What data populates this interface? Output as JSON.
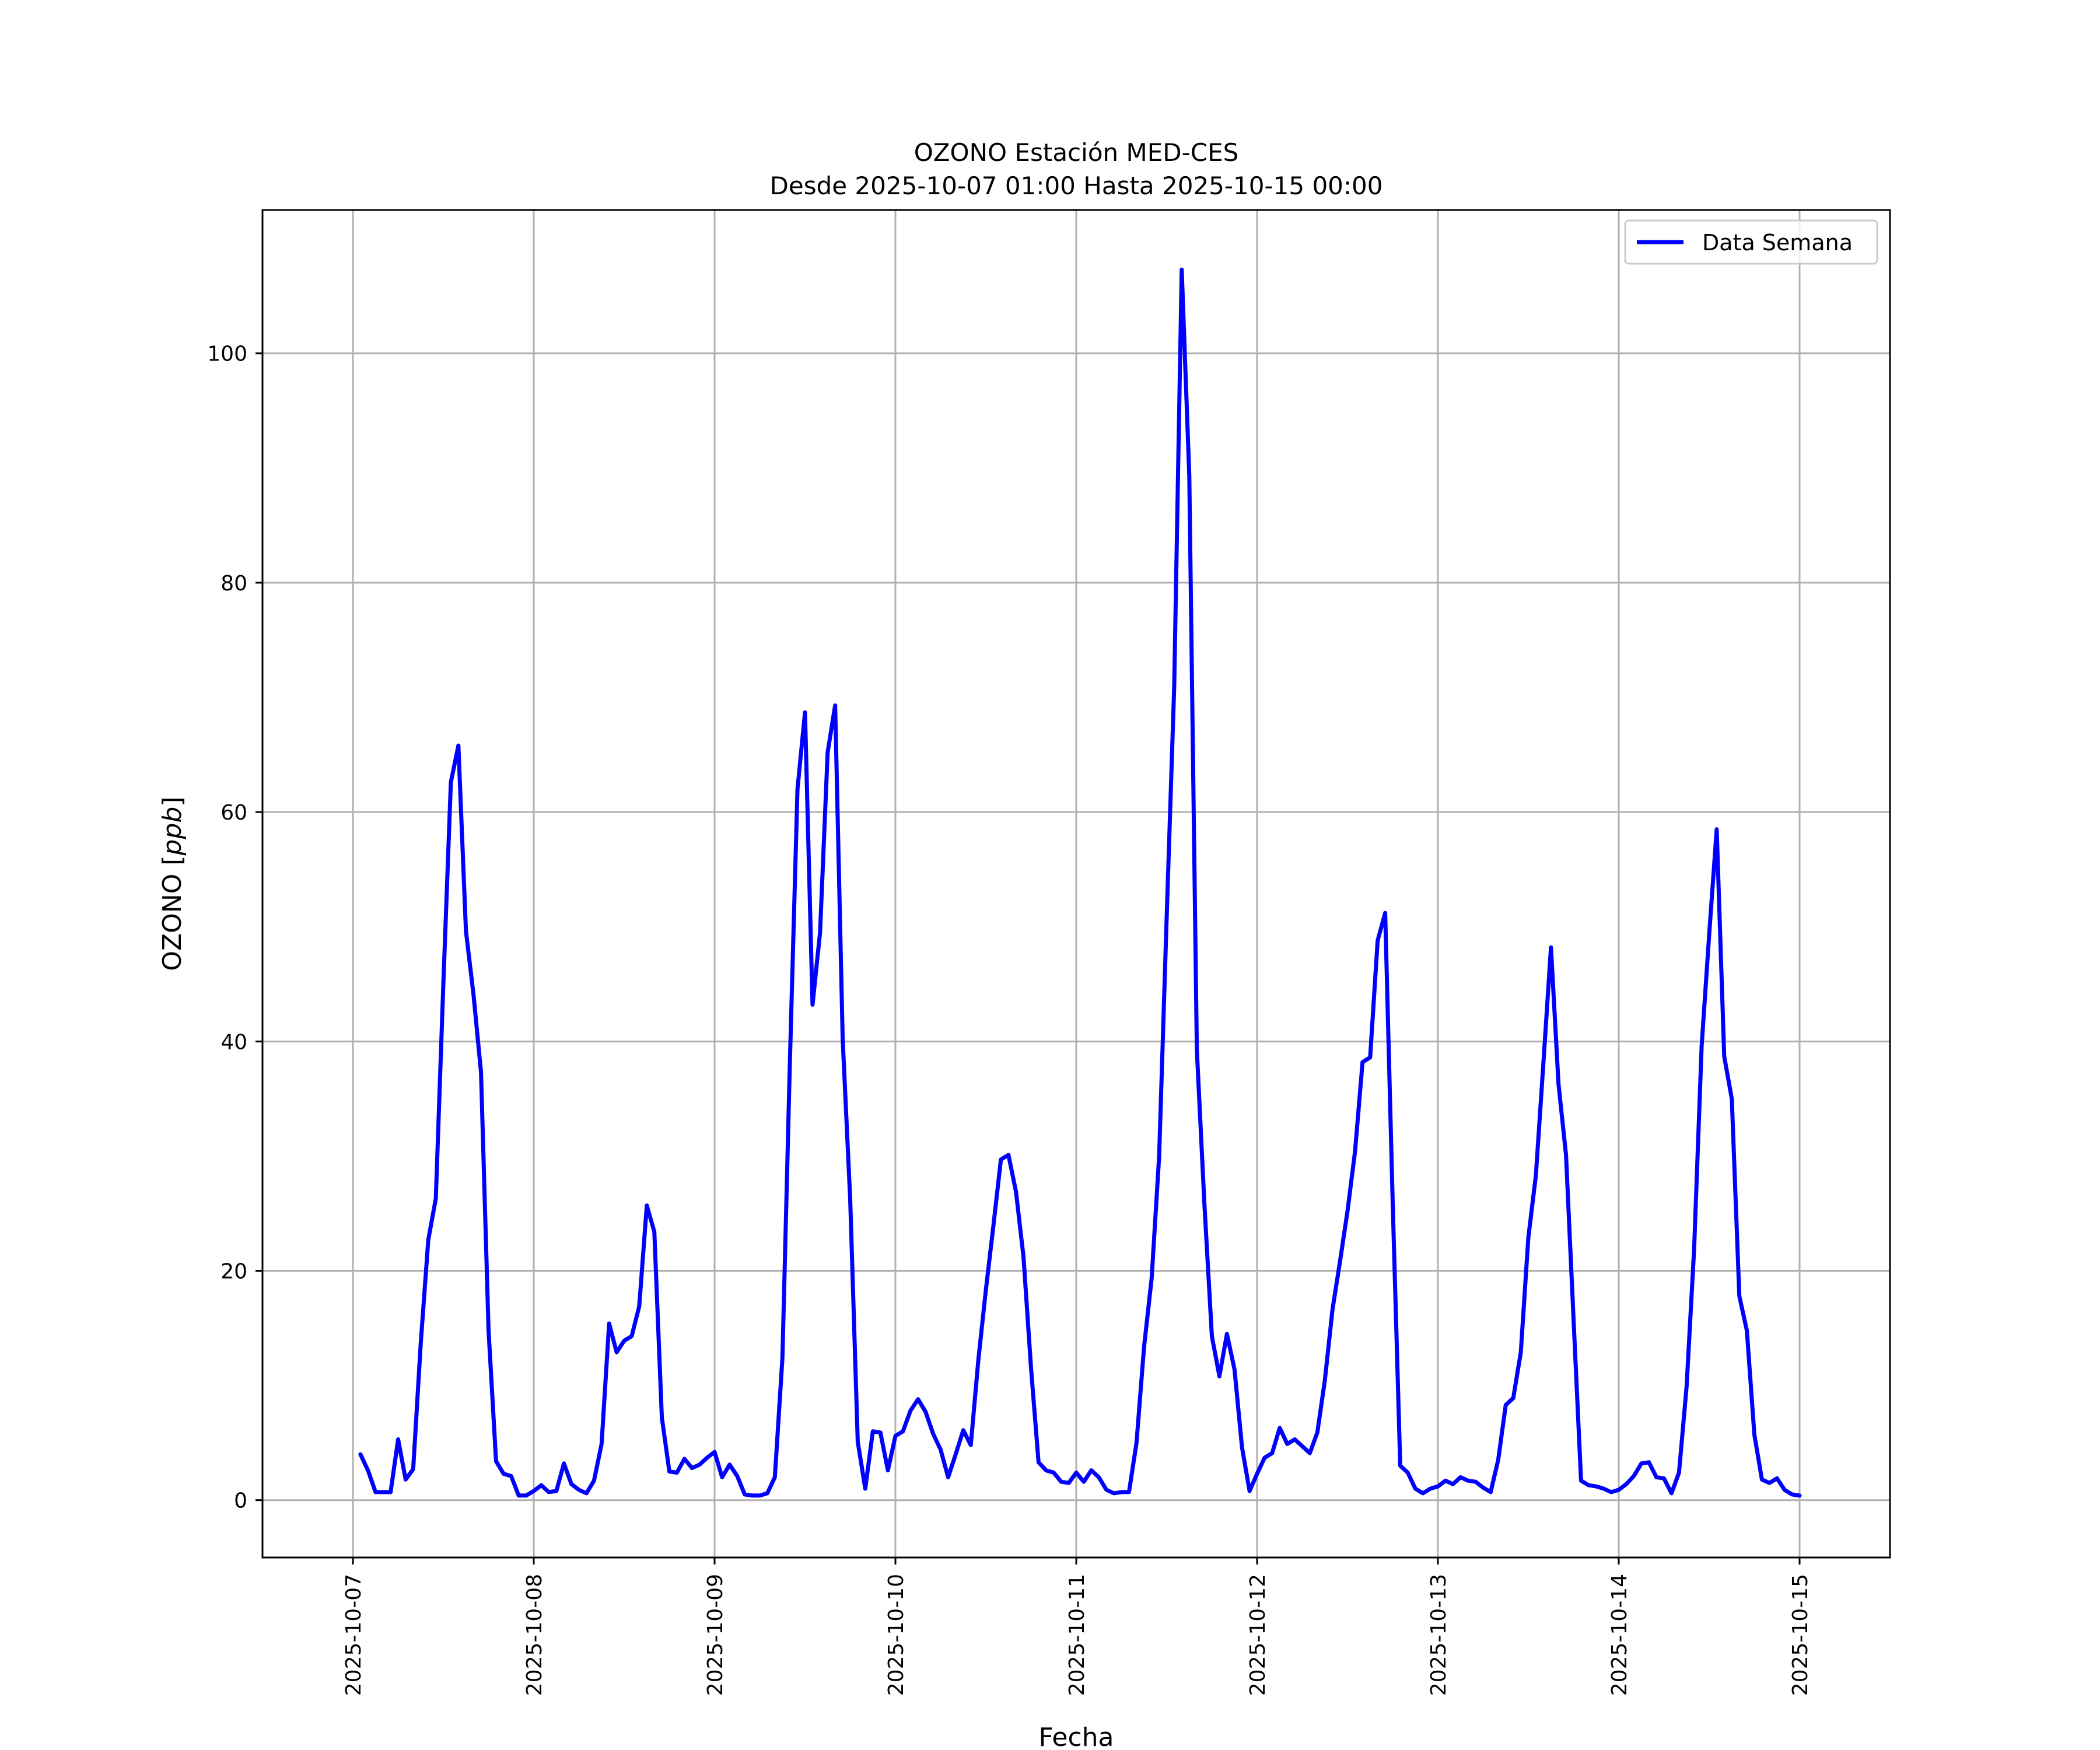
{
  "chart_data": {
    "type": "line",
    "title": "OZONO Estación MED-CES",
    "subtitle": "Desde 2025-10-07 01:00 Hasta 2025-10-15 00:00",
    "xlabel": "Fecha",
    "ylabel_prefix": "OZONO [",
    "ylabel_unit": "ppb",
    "ylabel_suffix": "]",
    "x_start": "2025-10-07 01:00",
    "x_step_hours": 1,
    "xlim": [
      "2025-10-06 12:00",
      "2025-10-15 12:00"
    ],
    "ylim": [
      -5,
      112.5
    ],
    "yticks": [
      0,
      20,
      40,
      60,
      80,
      100
    ],
    "xticks": [
      "2025-10-07",
      "2025-10-08",
      "2025-10-09",
      "2025-10-10",
      "2025-10-11",
      "2025-10-12",
      "2025-10-13",
      "2025-10-14",
      "2025-10-15"
    ],
    "grid": true,
    "legend_position": "top-right",
    "series": [
      {
        "name": "Data Semana",
        "color": "#0000ff",
        "values": [
          4.0,
          2.6,
          0.7,
          0.7,
          0.7,
          5.3,
          1.8,
          2.7,
          13.7,
          22.7,
          26.3,
          45.0,
          62.6,
          65.8,
          49.6,
          44.1,
          37.3,
          14.8,
          3.4,
          2.3,
          2.1,
          0.4,
          0.4,
          0.8,
          1.3,
          0.7,
          0.8,
          3.2,
          1.4,
          0.9,
          0.6,
          1.7,
          4.9,
          15.4,
          12.9,
          13.9,
          14.3,
          16.9,
          25.7,
          23.4,
          7.2,
          2.5,
          2.4,
          3.6,
          2.8,
          3.1,
          3.7,
          4.2,
          2.0,
          3.1,
          2.1,
          0.5,
          0.4,
          0.4,
          0.6,
          2.0,
          12.4,
          38.4,
          62.0,
          68.7,
          43.2,
          49.5,
          65.2,
          69.3,
          40.2,
          26.2,
          5.1,
          1.0,
          6.0,
          5.9,
          2.6,
          5.6,
          6.0,
          7.8,
          8.8,
          7.7,
          5.8,
          4.4,
          2.0,
          4.0,
          6.1,
          4.8,
          12.2,
          18.3,
          23.9,
          29.7,
          30.1,
          26.9,
          21.2,
          11.5,
          3.3,
          2.6,
          2.4,
          1.6,
          1.5,
          2.4,
          1.6,
          2.6,
          2.0,
          0.9,
          0.6,
          0.7,
          0.7,
          5.0,
          13.4,
          19.3,
          30.0,
          50.8,
          70.9,
          107.3,
          89.3,
          39.3,
          25.9,
          14.3,
          10.8,
          14.5,
          11.4,
          4.6,
          0.8,
          2.3,
          3.7,
          4.1,
          6.3,
          4.9,
          5.3,
          4.7,
          4.1,
          5.9,
          10.5,
          16.6,
          20.8,
          25.2,
          30.4,
          38.2,
          38.6,
          48.8,
          51.2,
          25.9,
          3.0,
          2.4,
          1.0,
          0.6,
          1.0,
          1.2,
          1.7,
          1.4,
          2.0,
          1.7,
          1.6,
          1.1,
          0.7,
          3.5,
          8.3,
          8.9,
          12.9,
          22.9,
          28.3,
          38.1,
          48.2,
          36.3,
          30.1,
          15.8,
          1.7,
          1.3,
          1.2,
          1.0,
          0.7,
          0.9,
          1.4,
          2.1,
          3.2,
          3.3,
          2.0,
          1.9,
          0.6,
          2.4,
          9.9,
          21.9,
          39.6,
          49.3,
          58.5,
          38.7,
          35.0,
          17.8,
          14.8,
          5.7,
          1.8,
          1.5,
          1.9,
          0.9,
          0.5,
          0.4
        ]
      }
    ]
  }
}
